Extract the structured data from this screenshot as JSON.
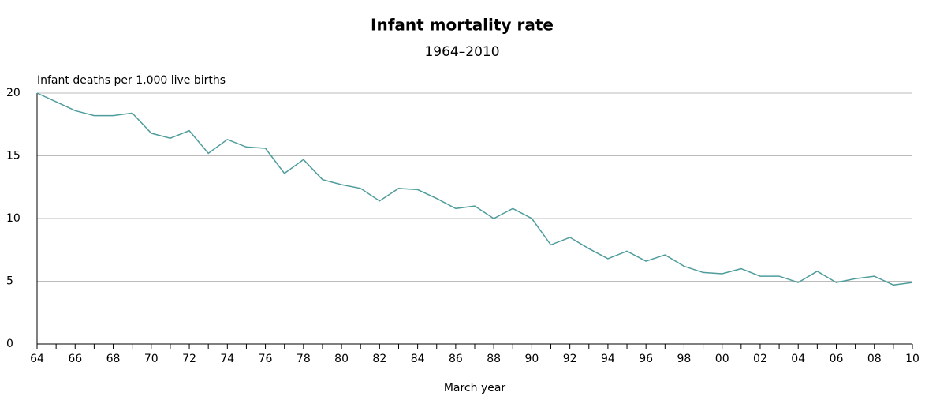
{
  "chart_data": {
    "type": "line",
    "title": "Infant mortality rate",
    "subtitle": "1964–2010",
    "y_label": "Infant deaths per 1,000 live births",
    "x_label": "March year",
    "categories": [
      "64",
      null,
      "66",
      null,
      "68",
      null,
      "70",
      null,
      "72",
      null,
      "74",
      null,
      "76",
      null,
      "78",
      null,
      "80",
      null,
      "82",
      null,
      "84",
      null,
      "86",
      null,
      "88",
      null,
      "90",
      null,
      "92",
      null,
      "94",
      null,
      "96",
      null,
      "98",
      null,
      "00",
      null,
      "02",
      null,
      "04",
      null,
      "06",
      null,
      "08",
      null,
      "10"
    ],
    "series": [
      {
        "name": "Infant mortality rate",
        "color": "#4f9c9c",
        "values": [
          20.0,
          19.3,
          18.6,
          18.2,
          18.2,
          18.4,
          16.8,
          16.4,
          17.0,
          15.2,
          16.3,
          15.7,
          15.6,
          13.6,
          14.7,
          13.1,
          12.7,
          12.4,
          11.4,
          12.4,
          12.3,
          11.6,
          10.8,
          11.0,
          10.0,
          10.8,
          10.0,
          7.9,
          8.5,
          7.6,
          6.8,
          7.4,
          6.6,
          7.1,
          6.2,
          5.7,
          5.6,
          6.0,
          5.4,
          5.4,
          4.9,
          5.8,
          4.9,
          5.2,
          5.4,
          4.7,
          4.9
        ]
      }
    ],
    "ylim": [
      0,
      20
    ],
    "yticks": [
      0,
      5,
      10,
      15,
      20
    ],
    "grid": true
  }
}
